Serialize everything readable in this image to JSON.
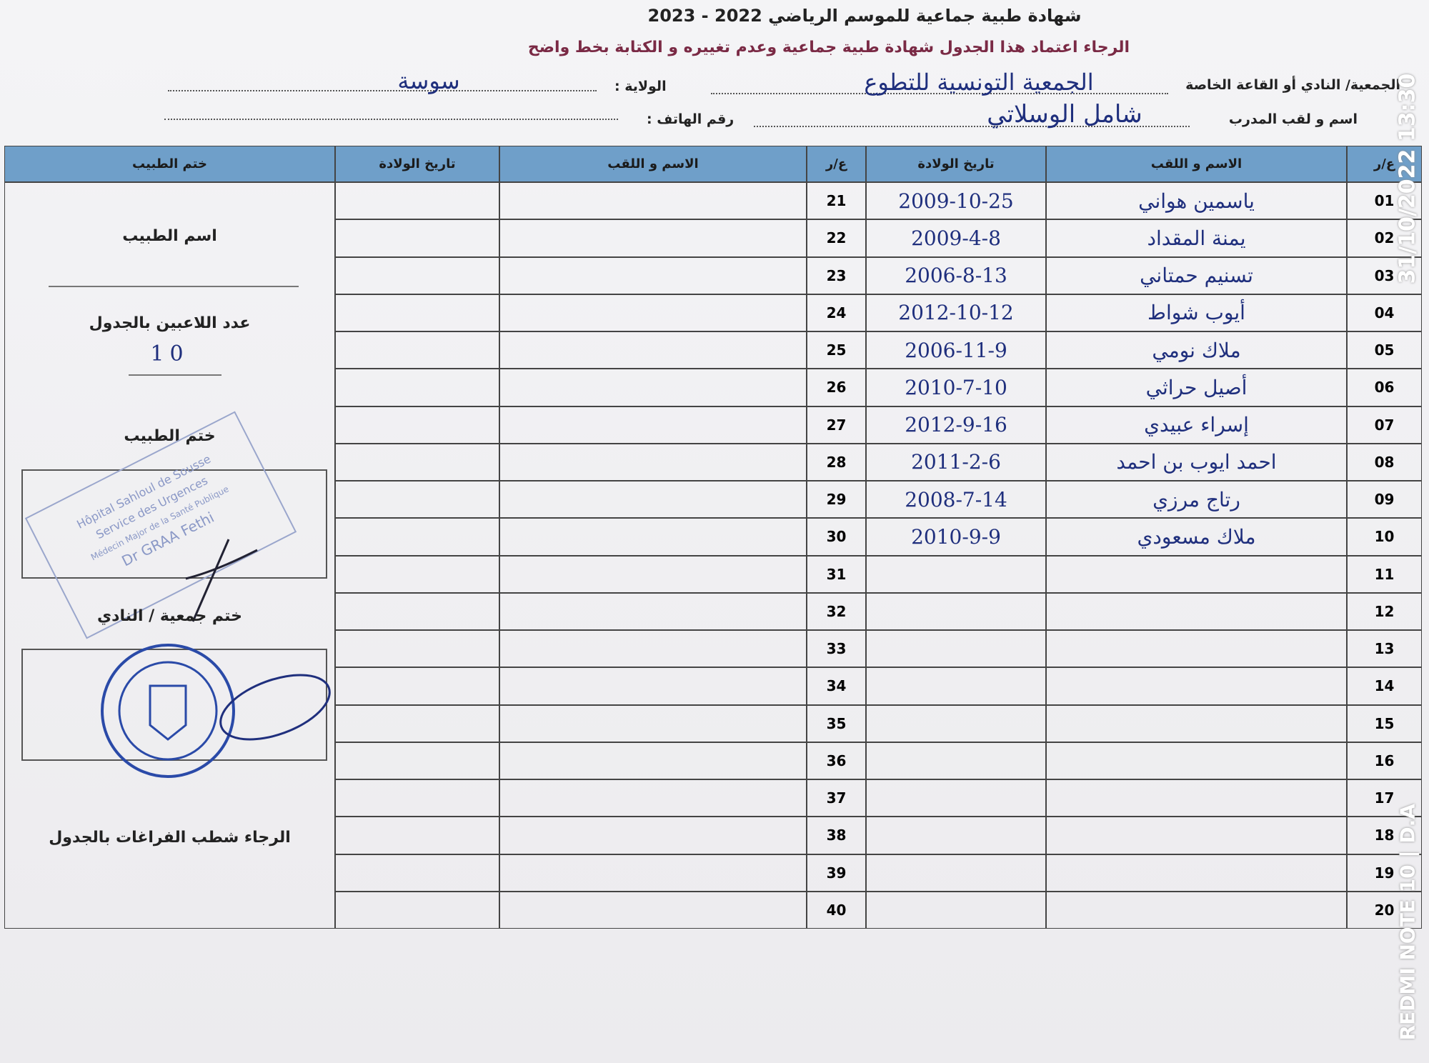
{
  "header": {
    "title": "شهادة طبية جماعية للموسم الرياضي 2022 - 2023",
    "notice": "الرجاء اعتماد هذا الجدول شهادة طبية جماعية وعدم تغييره و الكتابة بخط واضح"
  },
  "fields": [
    {
      "label": "الجمعية/ النادي أو القاعة الخاصة",
      "value": "الجمعية التونسية للتطوع"
    },
    {
      "label": "الولاية :",
      "value": "سوسة"
    },
    {
      "label": "اسم و لقب المدرب",
      "value": "شامل الوسلاتي"
    },
    {
      "label": "رقم الهاتف :"
    }
  ],
  "table": {
    "headers": [
      "ع/ر",
      "الاسم و اللقب",
      "تاريخ الولادة",
      "ع/ر",
      "الاسم و اللقب",
      "تاريخ الولادة",
      "ختم الطبيب"
    ],
    "right_rows": [
      {
        "no": "01",
        "name": "ياسمين هواني",
        "birth": "2009-10-25"
      },
      {
        "no": "02",
        "name": "يمنة المقداد",
        "birth": "2009-4-8"
      },
      {
        "no": "03",
        "name": "تسنيم حمتاني",
        "birth": "2006-8-13"
      },
      {
        "no": "04",
        "name": "أيوب شواط",
        "birth": "2012-10-12"
      },
      {
        "no": "05",
        "name": "ملاك نومي",
        "birth": "2006-11-9"
      },
      {
        "no": "06",
        "name": "أصيل حراثي",
        "birth": "2010-7-10"
      },
      {
        "no": "07",
        "name": "إسراء عبيدي",
        "birth": "2012-9-16"
      },
      {
        "no": "08",
        "name": "احمد ايوب بن احمد",
        "birth": "2011-2-6"
      },
      {
        "no": "09",
        "name": "رتاج مرزي",
        "birth": "2008-7-14"
      },
      {
        "no": "10",
        "name": "ملاك مسعودي",
        "birth": "2010-9-9"
      },
      {
        "no": "11"
      },
      {
        "no": "12"
      },
      {
        "no": "13"
      },
      {
        "no": "14"
      },
      {
        "no": "15"
      },
      {
        "no": "16"
      },
      {
        "no": "17"
      },
      {
        "no": "18"
      },
      {
        "no": "19"
      },
      {
        "no": "20"
      }
    ],
    "left_numbers": [
      "21",
      "22",
      "23",
      "24",
      "25",
      "26",
      "27",
      "28",
      "29",
      "30",
      "31",
      "32",
      "33",
      "34",
      "35",
      "36",
      "37",
      "38",
      "39",
      "40"
    ]
  },
  "side": {
    "doctor_name": "اسم الطبيب",
    "player_count_label": "عدد اللاعبين بالجدول",
    "player_count": 10,
    "doctor_stamp": "ختم الطبيب",
    "stamp_lines": [
      "Hôpital Sahloul de Sousse",
      "Service des Urgences",
      "Médecin Major de la Santé Publique",
      "Dr GRAA Fethi"
    ],
    "club_stamp": "ختم جمعية / النادي",
    "note": "الرجاء شطب الفراغات بالجدول"
  },
  "watermark": {
    "datetime": "31/10/2022 13:30",
    "device": "REDMI NOTE 10 | D.A"
  }
}
